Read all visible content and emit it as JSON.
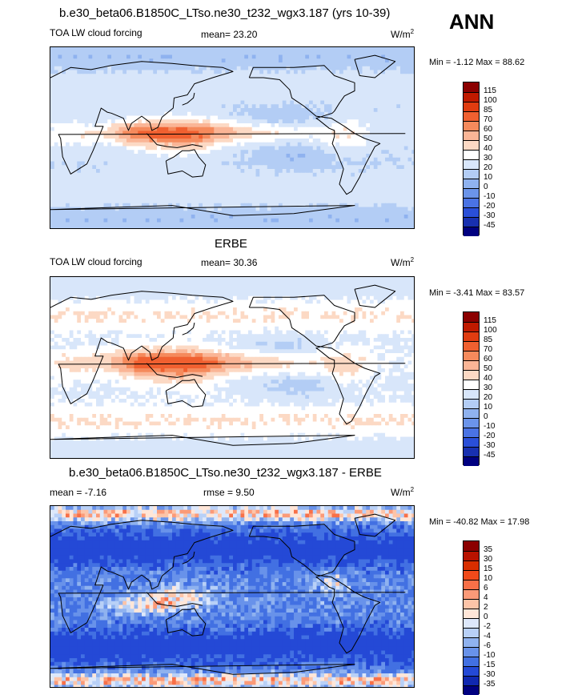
{
  "header": {
    "title": "b.e30_beta06.B1850C_LTso.ne30_t232_wgx3.187 (yrs 10-39)",
    "season": "ANN"
  },
  "panels": [
    {
      "label": "TOA LW cloud forcing",
      "stat": "mean=  23.20",
      "units": "W/m",
      "units_sup": "2",
      "minmax": "Min =  -1.12 Max =  88.62",
      "scale_key": "abs",
      "field_type": "model"
    },
    {
      "subtitle": "ERBE",
      "label": "TOA LW cloud forcing",
      "stat": "mean=  30.36",
      "units": "W/m",
      "units_sup": "2",
      "minmax": "Min =  -3.41 Max =  83.57",
      "scale_key": "abs",
      "field_type": "obs"
    },
    {
      "subtitle": "b.e30_beta06.B1850C_LTso.ne30_t232_wgx3.187 - ERBE",
      "label": "mean =  -7.16",
      "stat": "rmse =   9.50",
      "units": "W/m",
      "units_sup": "2",
      "minmax": "Min = -40.82 Max =  17.98",
      "scale_key": "diff",
      "field_type": "diff"
    }
  ],
  "chart_data": [
    {
      "type": "heatmap",
      "title": "b.e30_beta06.B1850C_LTso.ne30_t232_wgx3.187 (yrs 10-39)",
      "variable": "TOA LW cloud forcing",
      "units": "W/m2",
      "mean": 23.2,
      "min": -1.12,
      "max": 88.62,
      "contour_levels": [
        -45,
        -30,
        -20,
        -10,
        0,
        10,
        20,
        30,
        40,
        50,
        60,
        70,
        85,
        100,
        115
      ]
    },
    {
      "type": "heatmap",
      "title": "ERBE",
      "variable": "TOA LW cloud forcing",
      "units": "W/m2",
      "mean": 30.36,
      "min": -3.41,
      "max": 83.57,
      "contour_levels": [
        -45,
        -30,
        -20,
        -10,
        0,
        10,
        20,
        30,
        40,
        50,
        60,
        70,
        85,
        100,
        115
      ]
    },
    {
      "type": "heatmap",
      "title": "b.e30_beta06.B1850C_LTso.ne30_t232_wgx3.187 - ERBE",
      "units": "W/m2",
      "mean": -7.16,
      "rmse": 9.5,
      "min": -40.82,
      "max": 17.98,
      "contour_levels": [
        -35,
        -30,
        -15,
        -10,
        -6,
        -4,
        -2,
        0,
        2,
        4,
        6,
        10,
        15,
        30,
        35
      ]
    }
  ],
  "scales": {
    "abs": {
      "labels": [
        "115",
        "100",
        "85",
        "70",
        "60",
        "50",
        "40",
        "30",
        "20",
        "10",
        "0",
        "-10",
        "-20",
        "-30",
        "-45"
      ],
      "colors": [
        "#8b0000",
        "#c01a00",
        "#e03c10",
        "#f06030",
        "#f58a5c",
        "#fab596",
        "#fcd9c4",
        "#ffffff",
        "#d8e6fa",
        "#b3cdf5",
        "#8fb2ef",
        "#6b94ea",
        "#4a73e4",
        "#2a4fd8",
        "#1830b0",
        "#000080"
      ]
    },
    "diff": {
      "labels": [
        "35",
        "30",
        "15",
        "10",
        "6",
        "4",
        "2",
        "0",
        "-2",
        "-4",
        "-6",
        "-10",
        "-15",
        "-30",
        "-35"
      ],
      "colors": [
        "#8b0000",
        "#b81200",
        "#d82e00",
        "#f04a1a",
        "#f87048",
        "#fb9a78",
        "#fdc4a8",
        "#ffe6d8",
        "#dde8fb",
        "#b8d0f7",
        "#8fb2ef",
        "#6892ea",
        "#4270e2",
        "#2449d6",
        "#1028b0",
        "#000080"
      ]
    }
  }
}
